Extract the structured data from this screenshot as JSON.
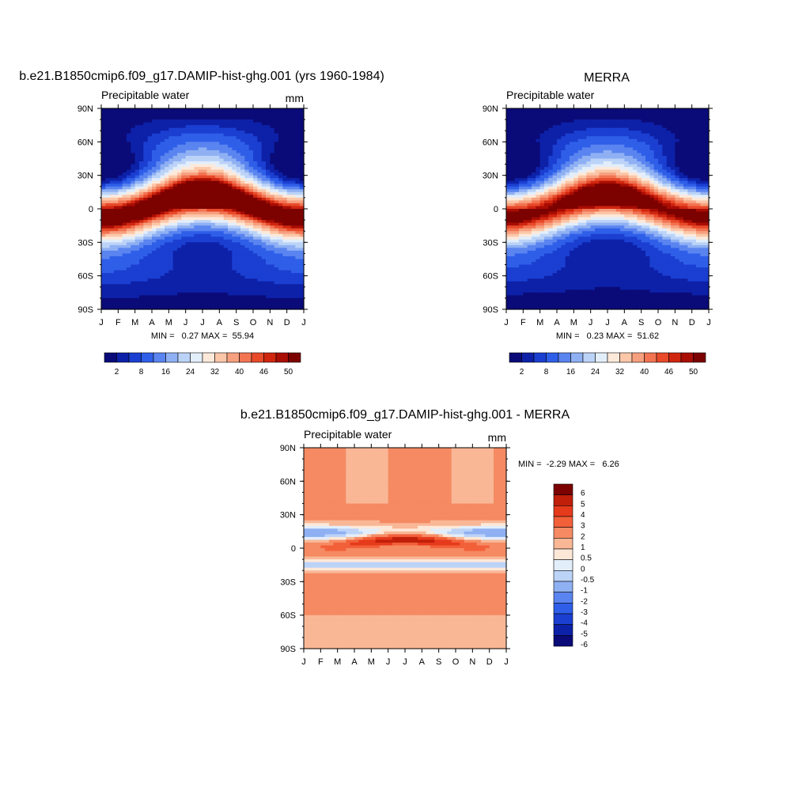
{
  "chart_data": [
    {
      "type": "heatmap",
      "title": "b.e21.B1850cmip6.f09_g17.DAMIP-hist-ghg.001 (yrs 1960-1984)",
      "left_label": "Precipitable water",
      "right_label": "mm",
      "x_ticks": [
        "J",
        "F",
        "M",
        "A",
        "M",
        "J",
        "J",
        "A",
        "S",
        "O",
        "N",
        "D",
        "J"
      ],
      "y_ticks": [
        "90N",
        "60N",
        "30N",
        "0",
        "30S",
        "60S",
        "90S"
      ],
      "y_values": [
        90,
        60,
        30,
        0,
        -30,
        -60,
        -90
      ],
      "ylim": [
        -90,
        90
      ],
      "stats_text": "MIN =   0.27 MAX =  55.94",
      "min": 0.27,
      "max": 55.94,
      "colorbar_levels": [
        2,
        8,
        16,
        24,
        32,
        40,
        46,
        50
      ],
      "colorbar_labels": [
        "2",
        "8",
        "16",
        "24",
        "32",
        "40",
        "46",
        "50"
      ],
      "colorbar_colors": [
        "#0a0b78",
        "#0d21a8",
        "#1b3fd1",
        "#2f5fe8",
        "#5a84ef",
        "#8fb0f3",
        "#bcd3f8",
        "#e3eefb",
        "#fde9da",
        "#fbc7a8",
        "#f7a07f",
        "#f27453",
        "#e84a2a",
        "#d02610",
        "#a90d04",
        "#7c0200"
      ],
      "field": "model"
    },
    {
      "type": "heatmap",
      "title": "MERRA",
      "left_label": "Precipitable water",
      "right_label": "",
      "x_ticks": [
        "J",
        "F",
        "M",
        "A",
        "M",
        "J",
        "J",
        "A",
        "S",
        "O",
        "N",
        "D",
        "J"
      ],
      "y_ticks": [
        "90N",
        "60N",
        "30N",
        "0",
        "30S",
        "60S",
        "90S"
      ],
      "y_values": [
        90,
        60,
        30,
        0,
        -30,
        -60,
        -90
      ],
      "ylim": [
        -90,
        90
      ],
      "stats_text": "MIN =   0.23 MAX =  51.62",
      "min": 0.23,
      "max": 51.62,
      "colorbar_levels": [
        2,
        8,
        16,
        24,
        32,
        40,
        46,
        50
      ],
      "colorbar_labels": [
        "2",
        "8",
        "16",
        "24",
        "32",
        "40",
        "46",
        "50"
      ],
      "colorbar_colors": [
        "#0a0b78",
        "#0d21a8",
        "#1b3fd1",
        "#2f5fe8",
        "#5a84ef",
        "#8fb0f3",
        "#bcd3f8",
        "#e3eefb",
        "#fde9da",
        "#fbc7a8",
        "#f7a07f",
        "#f27453",
        "#e84a2a",
        "#d02610",
        "#a90d04",
        "#7c0200"
      ],
      "field": "obs"
    },
    {
      "type": "heatmap",
      "title": "b.e21.B1850cmip6.f09_g17.DAMIP-hist-ghg.001 - MERRA",
      "left_label": "Precipitable water",
      "right_label": "mm",
      "x_ticks": [
        "J",
        "F",
        "M",
        "A",
        "M",
        "J",
        "J",
        "A",
        "S",
        "O",
        "N",
        "D",
        "J"
      ],
      "y_ticks": [
        "90N",
        "60N",
        "30N",
        "0",
        "30S",
        "60S",
        "90S"
      ],
      "y_values": [
        90,
        60,
        30,
        0,
        -30,
        -60,
        -90
      ],
      "ylim": [
        -90,
        90
      ],
      "stats_text": "MIN =  -2.29 MAX =   6.26",
      "min": -2.29,
      "max": 6.26,
      "colorbar_levels": [
        6,
        5,
        4,
        3,
        2,
        1,
        0.5,
        0,
        -0.5,
        -1,
        -2,
        -3,
        -4,
        -5,
        -6
      ],
      "colorbar_labels": [
        "6",
        "5",
        "4",
        "3",
        "2",
        "1",
        "0.5",
        "0",
        "-0.5",
        "-1",
        "-2",
        "-3",
        "-4",
        "-5",
        "-6"
      ],
      "colorbar_colors": [
        "#7c0200",
        "#c01f0a",
        "#e63a1c",
        "#f2603a",
        "#f58a63",
        "#f9b796",
        "#fde8d8",
        "#e3eefb",
        "#bcd3f8",
        "#8fb0f3",
        "#5a84ef",
        "#2f5fe8",
        "#1b3fd1",
        "#0d21a8",
        "#0a0b78"
      ],
      "field": "diff"
    }
  ]
}
